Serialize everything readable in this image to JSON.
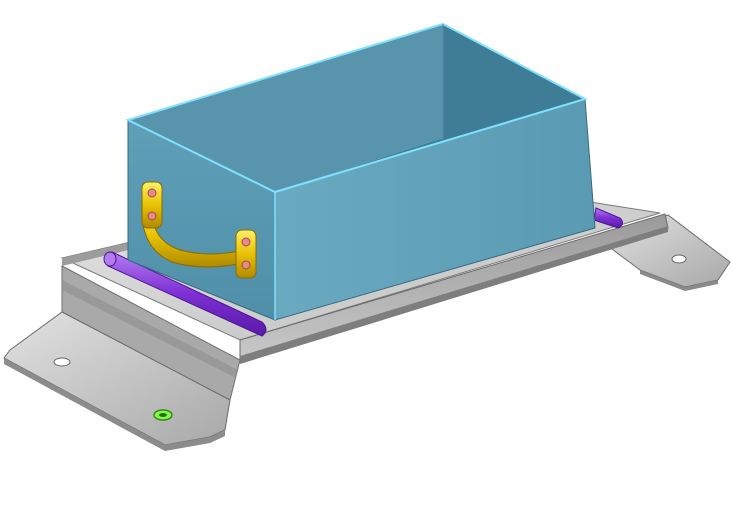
{
  "scene": {
    "background": "#ffffff",
    "colors": {
      "tray_light": "#dcdcdc",
      "tray_mid": "#b4b4b4",
      "tray_dark": "#8a8a8a",
      "rail": "#7d2fd4",
      "rail_light": "#a66be8",
      "box_front": "#5a9cb5",
      "box_side": "#67a8bf",
      "box_inner": "#3f7d96",
      "box_edge": "#7fe0ff",
      "handle": "#e8c200",
      "handle_dark": "#b89200",
      "screw": "#e88a8a",
      "hole_green": "#7dff4a"
    },
    "components": [
      {
        "name": "tray",
        "type": "bent-sheet-metal-base"
      },
      {
        "name": "rails",
        "type": "cylindrical-rod",
        "count": 2
      },
      {
        "name": "bin",
        "type": "open-top-box"
      },
      {
        "name": "handle",
        "type": "bail-handle",
        "screws": 4
      },
      {
        "name": "mounting-holes",
        "count": 3
      }
    ]
  }
}
